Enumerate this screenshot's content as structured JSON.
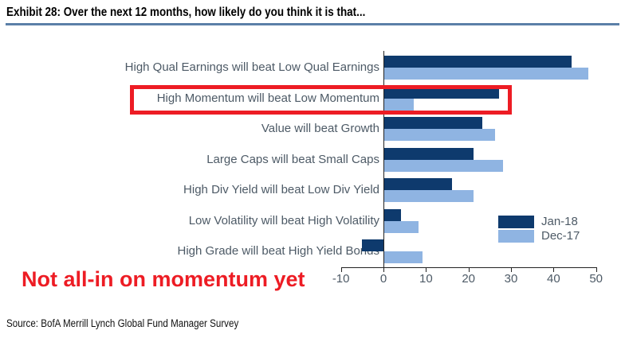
{
  "header": {
    "title": "Exhibit 28: Over the next 12 months, how likely do you think it is that..."
  },
  "chart_data": {
    "type": "bar",
    "orientation": "horizontal",
    "title": "Over the next 12 months, how likely do you think it is that...",
    "categories": [
      "High Qual Earnings will beat Low Qual Earnings",
      "High Momentum will beat Low Momentum",
      "Value will beat Growth",
      "Large Caps will beat Small Caps",
      "High Div Yield will beat Low Div Yield",
      "Low Volatility will beat High Volatility",
      "High Grade will beat High Yield Bonds"
    ],
    "series": [
      {
        "name": "Jan-18",
        "color": "#0e3a6d",
        "values": [
          44,
          27,
          23,
          21,
          16,
          4,
          -5
        ]
      },
      {
        "name": "Dec-17",
        "color": "#8fb4e2",
        "values": [
          48,
          7,
          26,
          28,
          21,
          8,
          9
        ]
      }
    ],
    "xlabel": "",
    "ylabel": "",
    "xlim": [
      -10,
      50
    ],
    "xticks": [
      -10,
      0,
      10,
      20,
      30,
      40,
      50
    ],
    "grid": false,
    "legend_position": "right-middle"
  },
  "highlight": {
    "target_category": "High Momentum will beat Low Momentum",
    "color": "#ed1c24"
  },
  "annotation": {
    "text": "Not all-in on momentum yet",
    "color": "#ed1c24"
  },
  "footer": {
    "source": "Source: BofA Merrill Lynch Global Fund Manager Survey"
  },
  "colors": {
    "title_underline": "#5b80a8",
    "axis": "#222222",
    "label_text": "#4d5a66"
  }
}
